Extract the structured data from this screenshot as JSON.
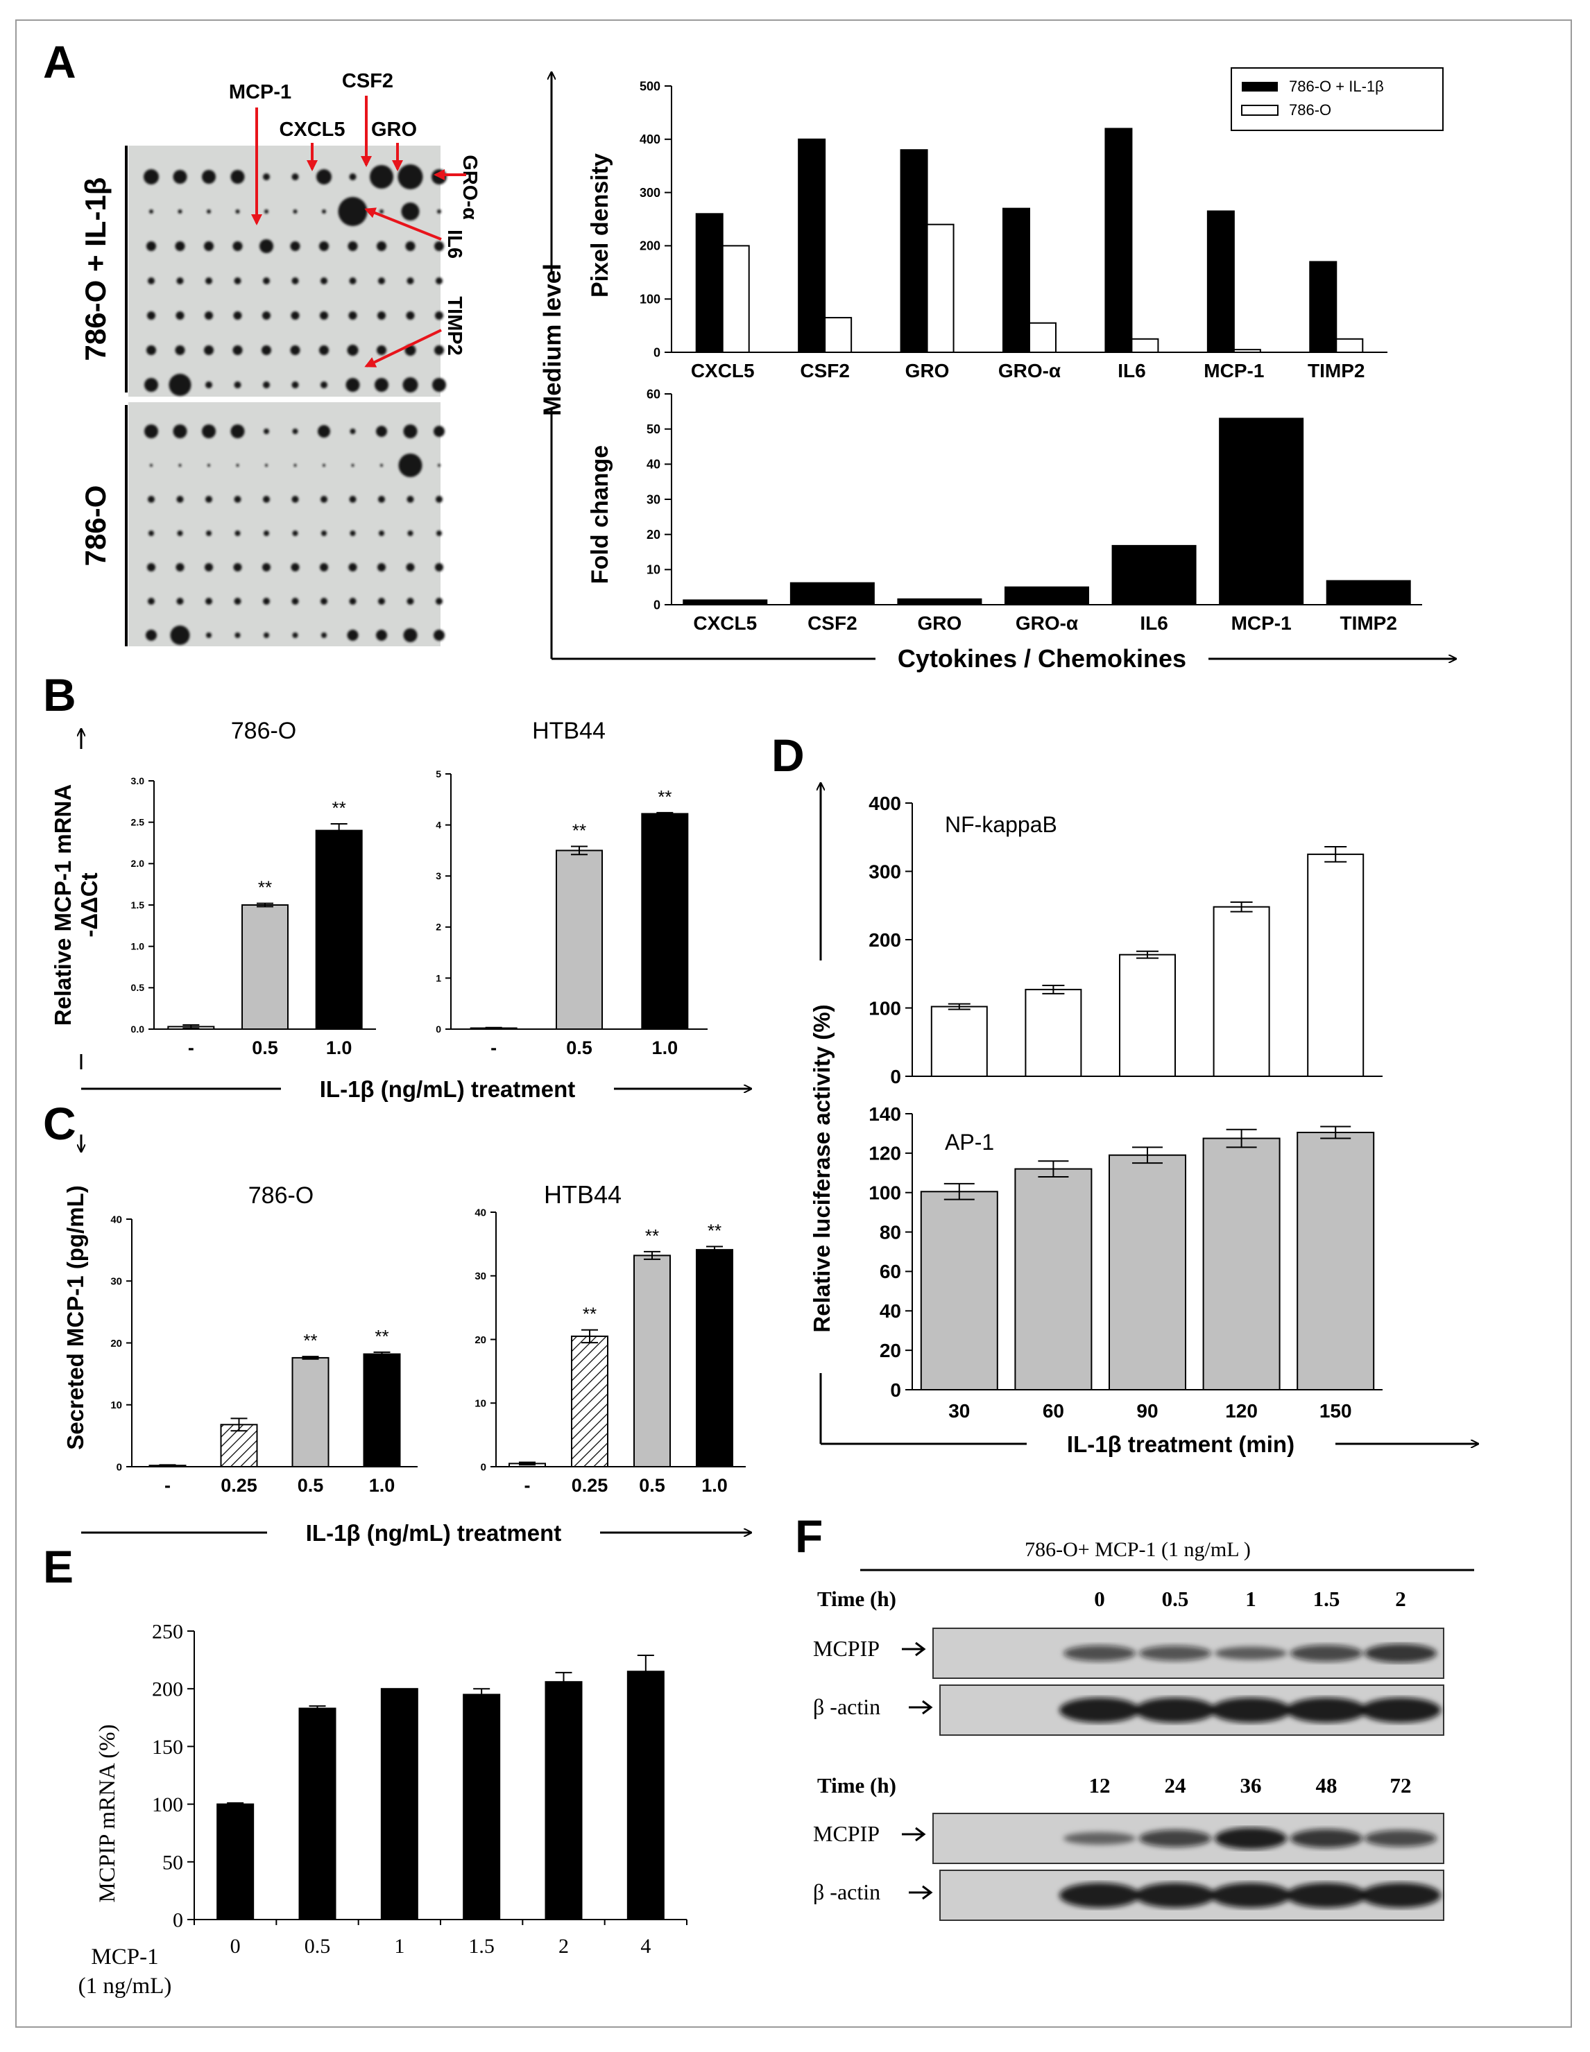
{
  "panel_letters": [
    "A",
    "B",
    "C",
    "D",
    "E",
    "F"
  ],
  "colors": {
    "black": "#000000",
    "white": "#ffffff",
    "gray": "#c0c0c0",
    "red": "#e8141b",
    "blot_bg": "#d9d9d9"
  },
  "array": {
    "group_top": "786-O + IL-1β",
    "group_bottom": "786-O",
    "callouts": [
      "MCP-1",
      "CSF2",
      "CXCL5",
      "GRO",
      "GRO-α",
      "IL6",
      "TIMP2"
    ]
  },
  "chart_data": [
    {
      "id": "A-pixel-density",
      "type": "bar",
      "categories": [
        "CXCL5",
        "CSF2",
        "GRO",
        "GRO-α",
        "IL6",
        "MCP-1",
        "TIMP2"
      ],
      "series": [
        {
          "name": "786-O + IL-1β",
          "values": [
            260,
            400,
            380,
            270,
            420,
            265,
            170
          ],
          "color": "#000000"
        },
        {
          "name": "786-O",
          "values": [
            200,
            65,
            240,
            55,
            25,
            5,
            25
          ],
          "color": "#ffffff"
        }
      ],
      "ylabel": "Pixel density",
      "ylim": [
        0,
        500
      ],
      "yticks": [
        "0",
        "100",
        "200",
        "300",
        "400",
        "500"
      ],
      "legend_position": "top-right"
    },
    {
      "id": "A-fold-change",
      "type": "bar",
      "categories": [
        "CXCL5",
        "CSF2",
        "GRO",
        "GRO-α",
        "IL6",
        "MCP-1",
        "TIMP2"
      ],
      "values": [
        1.3,
        6.2,
        1.6,
        5,
        16.8,
        53,
        6.8
      ],
      "ylabel": "Fold change",
      "ylim": [
        0,
        60
      ],
      "yticks": [
        "0",
        "10",
        "20",
        "30",
        "40",
        "50",
        "60"
      ],
      "outer_ylabel": "Medium level",
      "xlabel": "Cytokines / Chemokines"
    },
    {
      "id": "B-786-O",
      "type": "bar",
      "title": "786-O",
      "categories": [
        "-",
        "0.5",
        "1.0"
      ],
      "values": [
        0.03,
        1.5,
        2.4
      ],
      "errors": [
        0.02,
        0.02,
        0.08
      ],
      "significance": [
        "",
        "**",
        "**"
      ],
      "fills": [
        "#ffffff",
        "#c0c0c0",
        "#000000"
      ],
      "ylim": [
        0,
        3
      ],
      "yticks": [
        "0.0",
        "0.5",
        "1.0",
        "1.5",
        "2.0",
        "2.5",
        "3.0"
      ],
      "ylabel": "Relative MCP-1 mRNA",
      "ylabel2": "-ΔΔCt",
      "xlabel": "IL-1β (ng/mL) treatment"
    },
    {
      "id": "B-HTB44",
      "type": "bar",
      "title": "HTB44",
      "categories": [
        "-",
        "0.5",
        "1.0"
      ],
      "values": [
        0.02,
        3.5,
        4.22
      ],
      "errors": [
        0.01,
        0.08,
        0.02
      ],
      "significance": [
        "",
        "**",
        "**"
      ],
      "fills": [
        "#ffffff",
        "#c0c0c0",
        "#000000"
      ],
      "ylim": [
        0,
        5
      ],
      "yticks": [
        "0",
        "1",
        "2",
        "3",
        "4",
        "5"
      ]
    },
    {
      "id": "C-786-O",
      "type": "bar",
      "title": "786-O",
      "categories": [
        "-",
        "0.25",
        "0.5",
        "1.0"
      ],
      "values": [
        0.2,
        6.8,
        17.6,
        18.2
      ],
      "errors": [
        0.1,
        1.0,
        0.2,
        0.3
      ],
      "significance": [
        "",
        "",
        "**",
        "**"
      ],
      "fills": [
        "#ffffff",
        "hatch",
        "#c0c0c0",
        "#000000"
      ],
      "ylim": [
        0,
        40
      ],
      "yticks": [
        "0",
        "10",
        "20",
        "30",
        "40"
      ],
      "ylabel": "Secreted MCP-1 (pg/mL)",
      "xlabel": "IL-1β (ng/mL) treatment"
    },
    {
      "id": "C-HTB44",
      "type": "bar",
      "title": "HTB44",
      "categories": [
        "-",
        "0.25",
        "0.5",
        "1.0"
      ],
      "values": [
        0.5,
        20.5,
        33.2,
        34.1
      ],
      "errors": [
        0.2,
        1.0,
        0.6,
        0.5
      ],
      "significance": [
        "",
        "**",
        "**",
        "**"
      ],
      "fills": [
        "#ffffff",
        "hatch",
        "#c0c0c0",
        "#000000"
      ],
      "ylim": [
        0,
        40
      ],
      "yticks": [
        "0",
        "10",
        "20",
        "30",
        "40"
      ]
    },
    {
      "id": "D-NF-kappaB",
      "type": "bar",
      "title": "NF-kappaB",
      "categories": [
        "30",
        "60",
        "90",
        "120",
        "150"
      ],
      "values": [
        102,
        127,
        178,
        248,
        325
      ],
      "errors": [
        4,
        6,
        5,
        7,
        11
      ],
      "fills": [
        "#ffffff",
        "#ffffff",
        "#ffffff",
        "#ffffff",
        "#ffffff"
      ],
      "ylim": [
        0,
        400
      ],
      "yticks": [
        "0",
        "100",
        "200",
        "300",
        "400"
      ]
    },
    {
      "id": "D-AP-1",
      "type": "bar",
      "title": "AP-1",
      "categories": [
        "30",
        "60",
        "90",
        "120",
        "150"
      ],
      "values": [
        100.5,
        112,
        119,
        127.5,
        130.5
      ],
      "errors": [
        4,
        4,
        4,
        4.5,
        3
      ],
      "fills": [
        "#c0c0c0",
        "#c0c0c0",
        "#c0c0c0",
        "#c0c0c0",
        "#c0c0c0"
      ],
      "ylim": [
        0,
        140
      ],
      "yticks": [
        "0",
        "20",
        "40",
        "60",
        "80",
        "100",
        "120",
        "140"
      ],
      "ylabel": "Relative luciferase activity (%)",
      "xlabel": "IL-1β treatment (min)"
    },
    {
      "id": "E-MCPIP",
      "type": "bar",
      "categories": [
        "0",
        "0.5",
        "1",
        "1.5",
        "2",
        "4"
      ],
      "values": [
        100,
        183,
        200,
        195,
        206,
        215
      ],
      "errors": [
        1,
        2,
        0,
        5,
        8,
        14
      ],
      "ylim": [
        0,
        250
      ],
      "yticks": [
        "0",
        "50",
        "100",
        "150",
        "200",
        "250"
      ],
      "ylabel": "MCPIP mRNA (%)",
      "xlabel_line1": "MCP-1",
      "xlabel_line2": "(1 ng/mL)"
    }
  ],
  "western": {
    "header": "786-O+ MCP-1 (1 ng/mL )",
    "time_label": "Time (h)",
    "times_top": [
      "0",
      "0.5",
      "1",
      "1.5",
      "2"
    ],
    "times_bottom": [
      "12",
      "24",
      "36",
      "48",
      "72"
    ],
    "row_mcpip": "MCPIP",
    "row_actin": "β -actin",
    "mcpip_intensity_top": [
      0.55,
      0.5,
      0.35,
      0.6,
      0.75
    ],
    "mcpip_intensity_bottom": [
      0.3,
      0.65,
      0.95,
      0.75,
      0.6
    ]
  }
}
